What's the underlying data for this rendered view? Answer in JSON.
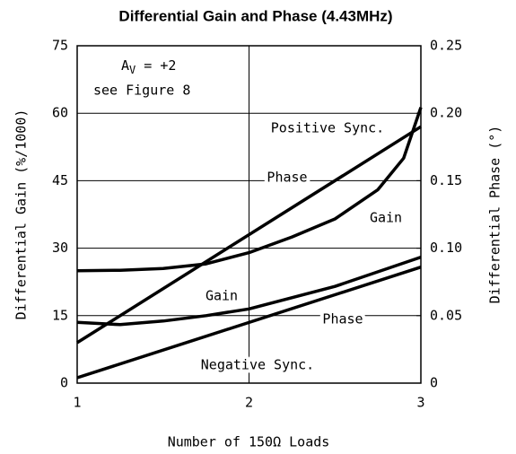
{
  "chart_data": {
    "type": "line",
    "title": "Differential Gain and Phase (4.43MHz)",
    "x_label": "Number of 150Ω Loads",
    "y_label": "Differential Gain (%/1000)",
    "y2_label": "Differential Phase (°)",
    "xlim": [
      1,
      3
    ],
    "xticks": [
      1,
      2,
      3
    ],
    "ylim": [
      0,
      75
    ],
    "yticks": [
      0,
      15,
      30,
      45,
      60,
      75
    ],
    "y2lim": [
      0,
      0.25
    ],
    "y2ticks": [
      0,
      0.05,
      {
        "value": 0.1,
        "label": "0.10"
      },
      0.15,
      {
        "value": 0.2,
        "label": "0.20"
      },
      0.25
    ],
    "grid": true,
    "gain_setting": {
      "symbol": "A",
      "subscript": "V",
      "value": " = +2"
    },
    "annotations": [
      "see Figure 8",
      "Positive Sync.",
      "Negative Sync."
    ],
    "series": [
      {
        "name": "Gain",
        "color": "#000000",
        "x": [
          1,
          1.25,
          1.5,
          1.75,
          2,
          2.25,
          2.5,
          2.75,
          2.9,
          3
        ],
        "values": [
          25,
          25.1,
          25.5,
          26.5,
          29,
          32.5,
          36.5,
          43,
          50,
          61.3
        ]
      },
      {
        "name": "Phase",
        "color": "#000000",
        "axis": "y2",
        "x": [
          1,
          3
        ],
        "values": [
          0.03,
          0.19
        ]
      },
      {
        "name": "Gain",
        "color": "#000000",
        "x": [
          1,
          1.25,
          1.5,
          1.75,
          2,
          2.5,
          3
        ],
        "values": [
          13.5,
          13,
          13.8,
          15,
          16.5,
          21.5,
          28
        ]
      },
      {
        "name": "Phase",
        "color": "#000000",
        "axis": "y2",
        "x": [
          1,
          3
        ],
        "values": [
          0.004,
          0.086
        ]
      }
    ]
  }
}
